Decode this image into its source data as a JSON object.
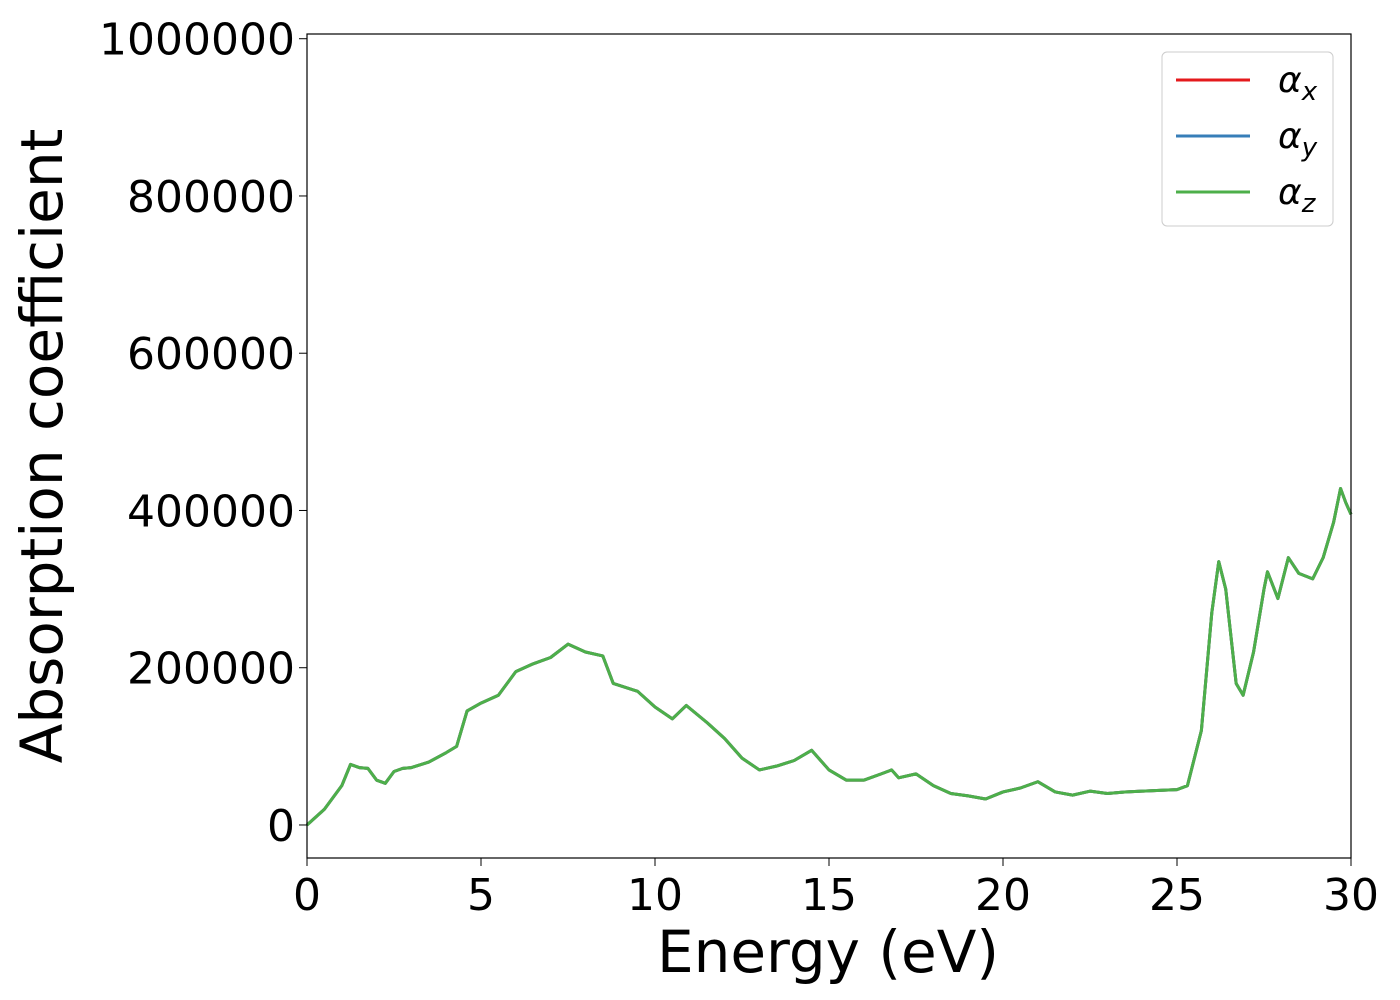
{
  "chart_data": {
    "type": "line",
    "xlabel": "Energy (eV)",
    "ylabel": "Absorption coefficient",
    "x": [
      0,
      0.5,
      1.0,
      1.25,
      1.5,
      1.75,
      2.0,
      2.25,
      2.5,
      2.75,
      3.0,
      3.5,
      4.0,
      4.3,
      4.6,
      5.0,
      5.5,
      6.0,
      6.5,
      7.0,
      7.5,
      8.0,
      8.5,
      8.8,
      9.5,
      10.0,
      10.5,
      10.9,
      11.5,
      12.0,
      12.5,
      13.0,
      13.5,
      14.0,
      14.5,
      15.0,
      15.5,
      16.0,
      16.5,
      16.8,
      17.0,
      17.5,
      18.0,
      18.5,
      19.0,
      19.5,
      20.0,
      20.5,
      21.0,
      21.5,
      22.0,
      22.5,
      23.0,
      23.5,
      24.0,
      24.5,
      25.0,
      25.3,
      25.7,
      26.0,
      26.2,
      26.4,
      26.7,
      26.9,
      27.2,
      27.5,
      27.6,
      27.9,
      28.2,
      28.5,
      28.9,
      29.2,
      29.5,
      29.7,
      29.85,
      30.0
    ],
    "series": [
      {
        "name": "αx",
        "color": "#e41a1c",
        "values": [
          0,
          20000,
          50000,
          77000,
          73000,
          72000,
          57000,
          53000,
          68000,
          72000,
          73000,
          80000,
          92000,
          100000,
          145000,
          155000,
          165000,
          195000,
          205000,
          213000,
          230000,
          220000,
          215000,
          180000,
          170000,
          150000,
          135000,
          152000,
          130000,
          110000,
          85000,
          70000,
          75000,
          82000,
          95000,
          70000,
          57000,
          57000,
          65000,
          70000,
          60000,
          65000,
          50000,
          40000,
          37000,
          33000,
          42000,
          47000,
          55000,
          42000,
          38000,
          43000,
          40000,
          42000,
          43000,
          44000,
          45000,
          50000,
          120000,
          270000,
          335000,
          300000,
          180000,
          165000,
          220000,
          300000,
          322000,
          288000,
          340000,
          320000,
          313000,
          340000,
          385000,
          428000,
          410000,
          395000
        ]
      },
      {
        "name": "αy",
        "color": "#377eb8",
        "values": [
          0,
          20000,
          50000,
          77000,
          73000,
          72000,
          57000,
          53000,
          68000,
          72000,
          73000,
          80000,
          92000,
          100000,
          145000,
          155000,
          165000,
          195000,
          205000,
          213000,
          230000,
          220000,
          215000,
          180000,
          170000,
          150000,
          135000,
          152000,
          130000,
          110000,
          85000,
          70000,
          75000,
          82000,
          95000,
          70000,
          57000,
          57000,
          65000,
          70000,
          60000,
          65000,
          50000,
          40000,
          37000,
          33000,
          42000,
          47000,
          55000,
          42000,
          38000,
          43000,
          40000,
          42000,
          43000,
          44000,
          45000,
          50000,
          120000,
          270000,
          335000,
          300000,
          180000,
          165000,
          220000,
          300000,
          322000,
          288000,
          340000,
          320000,
          313000,
          340000,
          385000,
          428000,
          410000,
          395000
        ]
      },
      {
        "name": "αz",
        "color": "#4daf4a",
        "values": [
          0,
          20000,
          50000,
          77000,
          73000,
          72000,
          57000,
          53000,
          68000,
          72000,
          73000,
          80000,
          92000,
          100000,
          145000,
          155000,
          165000,
          195000,
          205000,
          213000,
          230000,
          220000,
          215000,
          180000,
          170000,
          150000,
          135000,
          152000,
          130000,
          110000,
          85000,
          70000,
          75000,
          82000,
          95000,
          70000,
          57000,
          57000,
          65000,
          70000,
          60000,
          65000,
          50000,
          40000,
          37000,
          33000,
          42000,
          47000,
          55000,
          42000,
          38000,
          43000,
          40000,
          42000,
          43000,
          44000,
          45000,
          50000,
          120000,
          270000,
          335000,
          300000,
          180000,
          165000,
          220000,
          300000,
          322000,
          288000,
          340000,
          320000,
          313000,
          340000,
          385000,
          428000,
          410000,
          395000
        ]
      }
    ],
    "xlim": [
      0,
      30
    ],
    "xticks": [
      0,
      5,
      10,
      15,
      20,
      25,
      30
    ],
    "ylim": [
      -42000,
      1006000
    ],
    "yticks": [
      0,
      200000,
      400000,
      600000,
      800000,
      1000000
    ],
    "legend": "upper right"
  }
}
